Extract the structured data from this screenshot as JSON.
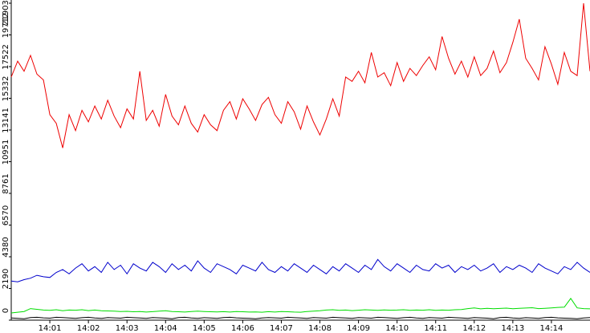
{
  "chart_data": {
    "type": "line",
    "categories": [
      null,
      null,
      null,
      null,
      null,
      null,
      "14:01",
      null,
      null,
      null,
      null,
      null,
      "14:02",
      null,
      null,
      null,
      null,
      null,
      "14:03",
      null,
      null,
      null,
      null,
      null,
      "14:04",
      null,
      null,
      null,
      null,
      null,
      "14:05",
      null,
      null,
      null,
      null,
      null,
      "14:06",
      null,
      null,
      null,
      null,
      null,
      "14:07",
      null,
      null,
      null,
      null,
      null,
      "14:08",
      null,
      null,
      null,
      null,
      null,
      "14:09",
      null,
      null,
      null,
      null,
      null,
      "14:10",
      null,
      null,
      null,
      null,
      null,
      "14:11",
      null,
      null,
      null,
      null,
      null,
      "14:12",
      null,
      null,
      null,
      null,
      null,
      "14:13",
      null,
      null,
      null,
      null,
      null,
      "14:14",
      null,
      null,
      null,
      null,
      null,
      null
    ],
    "ylim": [
      0,
      21903
    ],
    "yticks": [
      0,
      2190,
      4380,
      6570,
      8761,
      10951,
      13141,
      15332,
      17522,
      19712,
      21903
    ],
    "series": [
      {
        "color": "#ee0000",
        "values": [
          16800,
          17900,
          17200,
          18300,
          17000,
          16600,
          14200,
          13600,
          11900,
          14200,
          13100,
          14500,
          13700,
          14800,
          13900,
          15200,
          14100,
          13300,
          14600,
          13900,
          17200,
          13800,
          14500,
          13400,
          15600,
          14100,
          13500,
          14800,
          13600,
          13000,
          14200,
          13500,
          13100,
          14500,
          15100,
          13900,
          15300,
          14600,
          13800,
          14900,
          15400,
          14200,
          13600,
          15100,
          14400,
          13200,
          14800,
          13700,
          12800,
          13900,
          15300,
          14100,
          16800,
          16500,
          17200,
          16400,
          18500,
          16800,
          17100,
          16200,
          17800,
          16500,
          17400,
          16900,
          17600,
          18200,
          17300,
          19600,
          18100,
          17000,
          17900,
          16800,
          18200,
          16900,
          17400,
          18600,
          17100,
          17800,
          19200,
          20800,
          18100,
          17400,
          16600,
          18900,
          17700,
          16300,
          18500,
          17200,
          16900,
          21903,
          17200
        ]
      },
      {
        "color": "#0000cc",
        "values": [
          2700,
          2650,
          2800,
          2900,
          3100,
          3000,
          2950,
          3300,
          3500,
          3200,
          3600,
          3900,
          3400,
          3700,
          3300,
          4000,
          3500,
          3800,
          3200,
          3900,
          3600,
          3400,
          4000,
          3700,
          3300,
          3900,
          3500,
          3800,
          3400,
          4100,
          3600,
          3300,
          3900,
          3700,
          3500,
          3200,
          3800,
          3600,
          3400,
          4000,
          3500,
          3300,
          3700,
          3400,
          3900,
          3600,
          3300,
          3800,
          3500,
          3200,
          3700,
          3400,
          3900,
          3600,
          3300,
          3800,
          3500,
          4200,
          3700,
          3400,
          3900,
          3600,
          3300,
          3800,
          3500,
          3400,
          3900,
          3600,
          3800,
          3300,
          3700,
          3500,
          3800,
          3400,
          3600,
          3900,
          3300,
          3700,
          3500,
          3800,
          3600,
          3300,
          3900,
          3600,
          3400,
          3200,
          3700,
          3500,
          4000,
          3600,
          3300
        ]
      },
      {
        "color": "#00dd00",
        "values": [
          500,
          550,
          600,
          800,
          750,
          700,
          680,
          720,
          650,
          700,
          690,
          720,
          660,
          700,
          650,
          640,
          620,
          600,
          610,
          580,
          600,
          560,
          590,
          620,
          650,
          600,
          580,
          560,
          600,
          620,
          600,
          580,
          570,
          590,
          560,
          600,
          580,
          560,
          570,
          550,
          590,
          560,
          600,
          580,
          560,
          550,
          600,
          620,
          650,
          700,
          720,
          680,
          700,
          660,
          690,
          720,
          700,
          680,
          710,
          690,
          700,
          720,
          680,
          700,
          690,
          720,
          680,
          700,
          690,
          720,
          740,
          800,
          850,
          780,
          820,
          790,
          810,
          830,
          790,
          820,
          840,
          860,
          800,
          820,
          850,
          880,
          900,
          1500,
          850,
          800,
          780
        ]
      },
      {
        "color": "#000000",
        "values": [
          150,
          120,
          100,
          180,
          200,
          160,
          140,
          200,
          180,
          150,
          130,
          170,
          200,
          150,
          120,
          180,
          160,
          140,
          200,
          170,
          150,
          120,
          180,
          160,
          140,
          100,
          180,
          200,
          150,
          130,
          170,
          150,
          120,
          180,
          200,
          160,
          140,
          120,
          100,
          150,
          180,
          160,
          140,
          200,
          170,
          150,
          120,
          180,
          160,
          140,
          200,
          170,
          150,
          130,
          180,
          160,
          140,
          200,
          180,
          150,
          130,
          170,
          200,
          150,
          120,
          180,
          160,
          140,
          200,
          170,
          150,
          120,
          180,
          160,
          140,
          100,
          180,
          200,
          150,
          130,
          170,
          150,
          120,
          180,
          200,
          160,
          140,
          120,
          100,
          150,
          180
        ]
      }
    ]
  }
}
